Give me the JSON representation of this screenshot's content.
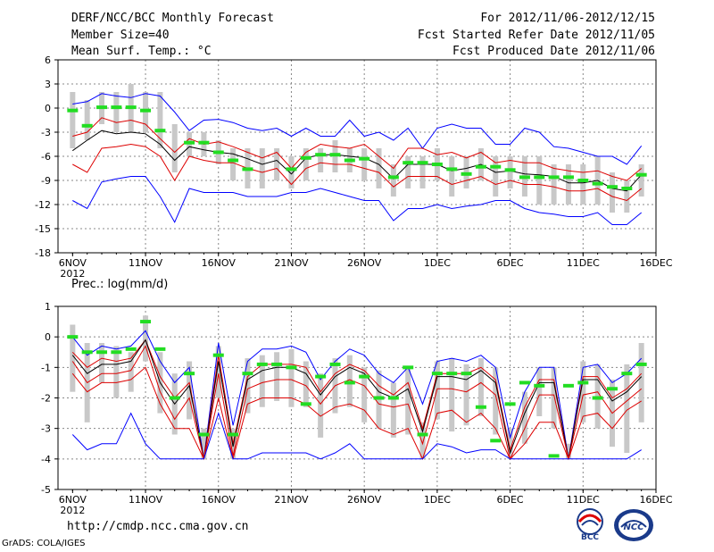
{
  "header": {
    "title": "DERF/NCC/BCC Monthly Forecast",
    "member_size": "Member Size=40",
    "variable": "Mean Surf. Temp.: °C",
    "for_period": "For 2012/11/06-2012/12/15",
    "fcst_started": "Fcst Started Refer Date 2012/11/05",
    "fcst_produced": "Fcst Produced Date 2012/11/06"
  },
  "footer": {
    "url": "http://cmdp.ncc.cma.gov.cn",
    "grads": "GrADS: COLA/IGES",
    "logo_bcc": "BCC",
    "logo_ncc": "NCC"
  },
  "colors": {
    "envelope": "#0000ff",
    "ensemble_band": "#dd0000",
    "mean": "#000000",
    "spread_bar": "#c8c8c8",
    "climatology": "#22dd22",
    "grid": "#888888"
  },
  "chart_data": [
    {
      "type": "line",
      "title": "Mean Surf. Temp.: °C",
      "x_start_day": 6,
      "n_days": 40,
      "x_tick_labels": [
        "6NOV",
        "11NOV",
        "16NOV",
        "21NOV",
        "26NOV",
        "1DEC",
        "6DEC",
        "11DEC",
        "16DEC"
      ],
      "x_year_label": "2012",
      "ylim": [
        -18,
        6
      ],
      "yticks": [
        6,
        3,
        0,
        -3,
        -6,
        -9,
        -12,
        -15,
        -18
      ],
      "series": [
        {
          "name": "max",
          "color": "blue",
          "values": [
            0.5,
            0.8,
            1.8,
            1.5,
            1.3,
            1.8,
            1.5,
            -0.5,
            -2.8,
            -1.5,
            -1.4,
            -1.8,
            -2.5,
            -2.8,
            -2.5,
            -3.5,
            -2.5,
            -3.5,
            -3.5,
            -1.5,
            -3.5,
            -3.0,
            -4.0,
            -2.5,
            -5.0,
            -2.5,
            -2.0,
            -2.5,
            -2.5,
            -4.5,
            -4.5,
            -2.5,
            -3.0,
            -4.8,
            -5.0,
            -5.5,
            -6.0,
            -6.0,
            -7.0,
            -4.7
          ]
        },
        {
          "name": "upper",
          "color": "red",
          "values": [
            -3.5,
            -3.0,
            -1.2,
            -1.8,
            -1.5,
            -2.0,
            -3.8,
            -5.5,
            -3.8,
            -4.5,
            -4.2,
            -4.8,
            -5.5,
            -6.2,
            -5.5,
            -7.5,
            -5.5,
            -4.5,
            -4.8,
            -5.0,
            -4.5,
            -6.0,
            -7.5,
            -5.0,
            -5.0,
            -5.8,
            -5.5,
            -6.2,
            -5.5,
            -6.8,
            -6.5,
            -6.8,
            -6.8,
            -7.5,
            -7.8,
            -8.0,
            -7.8,
            -8.5,
            -9.0,
            -7.5
          ]
        },
        {
          "name": "mean",
          "color": "black",
          "values": [
            -5.3,
            -4.0,
            -2.8,
            -3.2,
            -3.0,
            -3.2,
            -4.5,
            -6.5,
            -4.8,
            -5.2,
            -5.5,
            -5.7,
            -6.3,
            -7.0,
            -6.5,
            -8.2,
            -6.2,
            -5.8,
            -5.8,
            -6.0,
            -6.2,
            -7.0,
            -8.8,
            -7.0,
            -7.0,
            -7.0,
            -7.8,
            -7.5,
            -7.0,
            -8.0,
            -7.8,
            -8.2,
            -8.3,
            -8.5,
            -9.3,
            -9.3,
            -9.0,
            -10.0,
            -10.3,
            -8.3
          ]
        },
        {
          "name": "lower",
          "color": "red",
          "values": [
            -7.0,
            -8.0,
            -5.0,
            -4.8,
            -4.5,
            -4.8,
            -6.0,
            -9.0,
            -6.0,
            -6.5,
            -6.8,
            -6.8,
            -7.5,
            -8.0,
            -7.5,
            -9.5,
            -7.5,
            -6.8,
            -7.0,
            -7.0,
            -7.5,
            -8.0,
            -9.8,
            -8.5,
            -8.5,
            -8.5,
            -9.5,
            -9.0,
            -8.5,
            -9.5,
            -9.0,
            -9.5,
            -9.5,
            -9.8,
            -10.3,
            -10.3,
            -10.0,
            -11.0,
            -11.5,
            -10.0
          ]
        },
        {
          "name": "min",
          "color": "blue",
          "values": [
            -11.5,
            -12.5,
            -9.2,
            -8.8,
            -8.5,
            -8.5,
            -11.0,
            -14.2,
            -10.0,
            -10.5,
            -10.5,
            -10.5,
            -11.0,
            -11.0,
            -11.0,
            -10.5,
            -10.5,
            -10.0,
            -10.5,
            -11.0,
            -11.5,
            -11.5,
            -14.0,
            -12.5,
            -12.5,
            -12.0,
            -12.5,
            -12.2,
            -12.0,
            -11.5,
            -11.5,
            -12.5,
            -13.0,
            -13.2,
            -13.5,
            -13.5,
            -13.0,
            -14.5,
            -14.5,
            -13.0
          ]
        }
      ],
      "spread_bars": [
        [
          -5,
          2
        ],
        [
          -4,
          1
        ],
        [
          -2,
          2
        ],
        [
          -3,
          2
        ],
        [
          -3,
          3
        ],
        [
          -3,
          2
        ],
        [
          -5,
          2
        ],
        [
          -8,
          -2
        ],
        [
          -6,
          -3
        ],
        [
          -6,
          -3
        ],
        [
          -7,
          -4
        ],
        [
          -9,
          -5
        ],
        [
          -10,
          -5
        ],
        [
          -10,
          -5
        ],
        [
          -9,
          -5
        ],
        [
          -10,
          -6
        ],
        [
          -9,
          -5
        ],
        [
          -8,
          -5
        ],
        [
          -8,
          -4
        ],
        [
          -8,
          -5
        ],
        [
          -9,
          -5
        ],
        [
          -10,
          -5
        ],
        [
          -11,
          -7
        ],
        [
          -10,
          -6
        ],
        [
          -10,
          -6
        ],
        [
          -9,
          -5
        ],
        [
          -11,
          -6
        ],
        [
          -10,
          -6
        ],
        [
          -9,
          -5
        ],
        [
          -11,
          -6
        ],
        [
          -10,
          -6
        ],
        [
          -11,
          -6
        ],
        [
          -12,
          -6
        ],
        [
          -12,
          -7
        ],
        [
          -12,
          -7
        ],
        [
          -12,
          -7
        ],
        [
          -12,
          -6
        ],
        [
          -13,
          -8
        ],
        [
          -13,
          -9
        ],
        [
          -11,
          -7
        ]
      ],
      "climatology": [
        -0.3,
        -2.2,
        0.1,
        0.1,
        0.1,
        -0.3,
        -2.8,
        null,
        -4.3,
        -4.3,
        -5.5,
        -6.5,
        -7.6,
        null,
        null,
        -7.6,
        -6.2,
        -5.8,
        -5.8,
        -6.5,
        -6.3,
        null,
        -8.6,
        -6.8,
        -6.8,
        -7.0,
        -7.6,
        -8.2,
        -7.3,
        -7.3,
        -7.7,
        -8.6,
        -8.6,
        -8.6,
        -8.6,
        -9.0,
        -9.4,
        -9.8,
        -10.0,
        -8.3
      ]
    },
    {
      "type": "line",
      "title": "Prec.: log(mm/d)",
      "x_start_day": 6,
      "n_days": 40,
      "x_tick_labels": [
        "6NOV",
        "11NOV",
        "16NOV",
        "21NOV",
        "26NOV",
        "1DEC",
        "6DEC",
        "11DEC",
        "16DEC"
      ],
      "x_year_label": "2012",
      "ylim": [
        -5,
        1
      ],
      "yticks": [
        1,
        0,
        -1,
        -2,
        -3,
        -4,
        -5
      ],
      "series": [
        {
          "name": "max",
          "color": "blue",
          "values": [
            0.0,
            -0.6,
            -0.3,
            -0.4,
            -0.3,
            0.2,
            -0.8,
            -1.5,
            -1.0,
            -4.0,
            -0.2,
            -2.9,
            -0.8,
            -0.4,
            -0.4,
            -0.3,
            -0.5,
            -1.4,
            -0.8,
            -0.4,
            -0.6,
            -1.2,
            -1.5,
            -1.0,
            -2.2,
            -0.8,
            -0.7,
            -0.8,
            -0.6,
            -1.0,
            -3.3,
            -1.8,
            -1.0,
            -1.0,
            -4.0,
            -1.0,
            -0.9,
            -1.5,
            -1.2,
            -0.7
          ]
        },
        {
          "name": "upper",
          "color": "red",
          "values": [
            -0.5,
            -1.0,
            -0.7,
            -0.8,
            -0.7,
            -0.1,
            -1.3,
            -2.0,
            -1.5,
            -4.0,
            -0.6,
            -3.5,
            -1.3,
            -0.9,
            -0.9,
            -0.9,
            -1.0,
            -1.8,
            -1.2,
            -0.9,
            -1.1,
            -1.6,
            -1.9,
            -1.5,
            -3.0,
            -1.2,
            -1.2,
            -1.2,
            -1.0,
            -1.4,
            -3.7,
            -2.3,
            -1.4,
            -1.4,
            -4.0,
            -1.3,
            -1.3,
            -2.0,
            -1.7,
            -1.2
          ]
        },
        {
          "name": "mean",
          "color": "black",
          "values": [
            -0.6,
            -1.2,
            -0.9,
            -0.9,
            -0.8,
            -0.1,
            -1.5,
            -2.2,
            -1.6,
            -4.0,
            -0.8,
            -3.6,
            -1.4,
            -1.1,
            -1.0,
            -1.0,
            -1.2,
            -1.9,
            -1.3,
            -1.0,
            -1.2,
            -1.8,
            -2.0,
            -1.7,
            -3.1,
            -1.3,
            -1.3,
            -1.4,
            -1.1,
            -1.5,
            -3.8,
            -2.5,
            -1.5,
            -1.5,
            -4.0,
            -1.4,
            -1.4,
            -2.1,
            -1.8,
            -1.3
          ]
        },
        {
          "name": "lower",
          "color": "red",
          "values": [
            -0.8,
            -1.5,
            -1.2,
            -1.2,
            -1.1,
            -0.3,
            -1.8,
            -2.7,
            -2.0,
            -4.0,
            -1.2,
            -3.9,
            -1.7,
            -1.5,
            -1.4,
            -1.4,
            -1.6,
            -2.2,
            -1.6,
            -1.4,
            -1.6,
            -2.2,
            -2.3,
            -2.2,
            -3.5,
            -1.7,
            -1.7,
            -1.8,
            -1.5,
            -1.9,
            -4.0,
            -3.0,
            -1.9,
            -1.9,
            -4.0,
            -1.9,
            -1.8,
            -2.5,
            -2.1,
            -1.7
          ]
        },
        {
          "name": "low2",
          "color": "red",
          "values": [
            -1.2,
            -1.8,
            -1.5,
            -1.5,
            -1.4,
            -1.0,
            -2.2,
            -3.0,
            -3.0,
            -4.0,
            -2.0,
            -4.0,
            -2.2,
            -2.0,
            -2.0,
            -2.0,
            -2.2,
            -2.6,
            -2.3,
            -2.2,
            -2.4,
            -3.0,
            -3.2,
            -3.0,
            -4.0,
            -2.5,
            -2.4,
            -2.8,
            -2.5,
            -3.0,
            -4.0,
            -3.5,
            -2.8,
            -2.8,
            -4.0,
            -2.6,
            -2.5,
            -3.0,
            -2.4,
            -2.1
          ]
        },
        {
          "name": "min",
          "color": "blue",
          "values": [
            -3.2,
            -3.7,
            -3.5,
            -3.5,
            -2.5,
            -3.5,
            -4.0,
            -4.0,
            -4.0,
            -4.0,
            -2.5,
            -4.0,
            -4.0,
            -3.8,
            -3.8,
            -3.8,
            -3.8,
            -4.0,
            -3.8,
            -3.5,
            -4.0,
            -4.0,
            -4.0,
            -4.0,
            -4.0,
            -3.5,
            -3.6,
            -3.8,
            -3.7,
            -3.7,
            -4.0,
            -4.0,
            -4.0,
            -4.0,
            -4.0,
            -4.0,
            -4.0,
            -4.0,
            -4.0,
            -3.7
          ]
        }
      ],
      "spread_bars": [
        [
          -1.8,
          0.4
        ],
        [
          -2.8,
          -0.2
        ],
        [
          -1.5,
          -0.2
        ],
        [
          -2.0,
          -0.3
        ],
        [
          -1.8,
          -0.5
        ],
        [
          -0.8,
          0.7
        ],
        [
          -2.5,
          -0.5
        ],
        [
          -3.2,
          -1.2
        ],
        [
          -2.7,
          -0.8
        ],
        [
          -4.0,
          -3.0
        ],
        [
          -2.0,
          -0.3
        ],
        [
          -4.0,
          -3.0
        ],
        [
          -2.5,
          -0.7
        ],
        [
          -2.3,
          -0.6
        ],
        [
          -2.1,
          -0.5
        ],
        [
          -2.3,
          -0.4
        ],
        [
          -2.3,
          -0.8
        ],
        [
          -3.3,
          -1.2
        ],
        [
          -2.5,
          -0.7
        ],
        [
          -2.3,
          -0.6
        ],
        [
          -2.8,
          -1.0
        ],
        [
          -3.0,
          -1.1
        ],
        [
          -3.3,
          -1.5
        ],
        [
          -3.2,
          -1.0
        ],
        [
          -4.0,
          -2.8
        ],
        [
          -2.7,
          -0.8
        ],
        [
          -3.1,
          -0.7
        ],
        [
          -2.9,
          -0.9
        ],
        [
          -2.6,
          -0.7
        ],
        [
          -3.2,
          -1.0
        ],
        [
          -4.0,
          -3.0
        ],
        [
          -3.5,
          -1.8
        ],
        [
          -2.6,
          -1.0
        ],
        [
          -3.0,
          -1.0
        ],
        [
          -4.0,
          -3.5
        ],
        [
          -2.8,
          -0.8
        ],
        [
          -3.0,
          -0.9
        ],
        [
          -3.6,
          -1.4
        ],
        [
          -3.8,
          -0.9
        ],
        [
          -2.8,
          -0.2
        ]
      ],
      "climatology": [
        0.0,
        -0.5,
        -0.5,
        -0.5,
        -0.4,
        0.5,
        -0.4,
        -2.0,
        -1.2,
        -3.2,
        -0.6,
        -3.2,
        -1.2,
        -0.9,
        -0.9,
        -1.0,
        -2.2,
        -1.3,
        -0.9,
        -1.5,
        -1.3,
        -2.0,
        -2.0,
        -1.0,
        -3.2,
        -1.2,
        -1.2,
        -1.2,
        -2.3,
        -3.4,
        -2.2,
        -1.5,
        -1.6,
        -3.9,
        -1.6,
        -1.5,
        -2.0,
        -1.7,
        -1.2,
        -0.9
      ]
    }
  ]
}
